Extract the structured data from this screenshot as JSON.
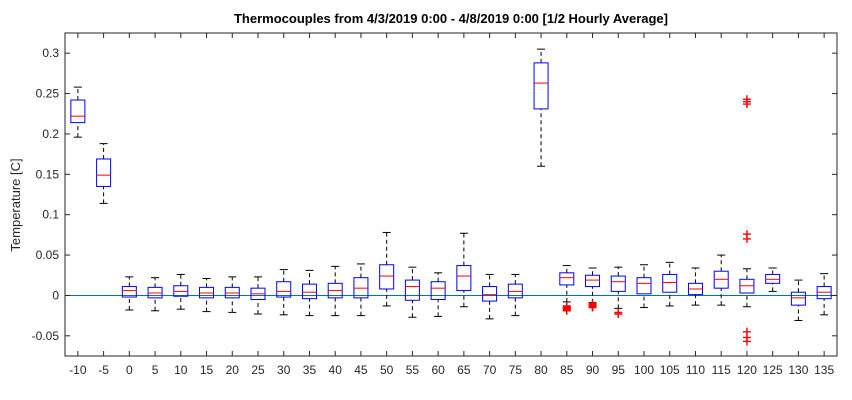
{
  "chart_data": {
    "type": "boxplot",
    "title": "Thermocouples from 4/3/2019 0:00 - 4/8/2019 0:00 [1/2 Hourly Average]",
    "xlabel": "",
    "ylabel": "Temperature [C]",
    "ylim": [
      -0.075,
      0.325
    ],
    "yticks": [
      -0.05,
      0,
      0.05,
      0.1,
      0.15,
      0.2,
      0.25,
      0.3
    ],
    "ytick_labels": [
      "-0.05",
      "0",
      "0.05",
      "0.1",
      "0.15",
      "0.2",
      "0.25",
      "0.3"
    ],
    "categories": [
      "-10",
      "-5",
      "0",
      "5",
      "10",
      "15",
      "20",
      "25",
      "30",
      "35",
      "40",
      "45",
      "50",
      "55",
      "60",
      "65",
      "70",
      "75",
      "80",
      "85",
      "90",
      "95",
      "100",
      "105",
      "110",
      "115",
      "120",
      "125",
      "130",
      "135"
    ],
    "grid": false,
    "reference_line": 0,
    "colors": {
      "box": "#0000ff",
      "median": "#ff0000",
      "whisker": "#000000",
      "outlier": "#ff0000",
      "reference_line": "#0072bd"
    },
    "boxes": [
      {
        "whisker_low": 0.196,
        "q1": 0.214,
        "median": 0.222,
        "q3": 0.242,
        "whisker_high": 0.258,
        "outliers": []
      },
      {
        "whisker_low": 0.114,
        "q1": 0.135,
        "median": 0.149,
        "q3": 0.169,
        "whisker_high": 0.188,
        "outliers": []
      },
      {
        "whisker_low": -0.018,
        "q1": -0.002,
        "median": 0.006,
        "q3": 0.011,
        "whisker_high": 0.023,
        "outliers": []
      },
      {
        "whisker_low": -0.019,
        "q1": -0.003,
        "median": 0.003,
        "q3": 0.01,
        "whisker_high": 0.022,
        "outliers": []
      },
      {
        "whisker_low": -0.017,
        "q1": -0.001,
        "median": 0.005,
        "q3": 0.012,
        "whisker_high": 0.026,
        "outliers": []
      },
      {
        "whisker_low": -0.02,
        "q1": -0.003,
        "median": 0.003,
        "q3": 0.01,
        "whisker_high": 0.021,
        "outliers": []
      },
      {
        "whisker_low": -0.021,
        "q1": -0.003,
        "median": 0.003,
        "q3": 0.01,
        "whisker_high": 0.023,
        "outliers": []
      },
      {
        "whisker_low": -0.023,
        "q1": -0.005,
        "median": 0.002,
        "q3": 0.009,
        "whisker_high": 0.023,
        "outliers": []
      },
      {
        "whisker_low": -0.024,
        "q1": -0.002,
        "median": 0.005,
        "q3": 0.017,
        "whisker_high": 0.032,
        "outliers": []
      },
      {
        "whisker_low": -0.025,
        "q1": -0.004,
        "median": 0.004,
        "q3": 0.014,
        "whisker_high": 0.031,
        "outliers": []
      },
      {
        "whisker_low": -0.025,
        "q1": -0.003,
        "median": 0.006,
        "q3": 0.015,
        "whisker_high": 0.036,
        "outliers": []
      },
      {
        "whisker_low": -0.025,
        "q1": -0.003,
        "median": 0.009,
        "q3": 0.022,
        "whisker_high": 0.039,
        "outliers": []
      },
      {
        "whisker_low": -0.013,
        "q1": 0.008,
        "median": 0.024,
        "q3": 0.038,
        "whisker_high": 0.078,
        "outliers": []
      },
      {
        "whisker_low": -0.027,
        "q1": -0.006,
        "median": 0.011,
        "q3": 0.019,
        "whisker_high": 0.035,
        "outliers": []
      },
      {
        "whisker_low": -0.026,
        "q1": -0.005,
        "median": 0.009,
        "q3": 0.017,
        "whisker_high": 0.028,
        "outliers": []
      },
      {
        "whisker_low": -0.014,
        "q1": 0.006,
        "median": 0.024,
        "q3": 0.037,
        "whisker_high": 0.077,
        "outliers": []
      },
      {
        "whisker_low": -0.029,
        "q1": -0.007,
        "median": 0.001,
        "q3": 0.011,
        "whisker_high": 0.026,
        "outliers": []
      },
      {
        "whisker_low": -0.025,
        "q1": -0.003,
        "median": 0.005,
        "q3": 0.014,
        "whisker_high": 0.026,
        "outliers": []
      },
      {
        "whisker_low": 0.16,
        "q1": 0.231,
        "median": 0.263,
        "q3": 0.288,
        "whisker_high": 0.305,
        "outliers": []
      },
      {
        "whisker_low": -0.008,
        "q1": 0.013,
        "median": 0.022,
        "q3": 0.028,
        "whisker_high": 0.037,
        "outliers": [
          -0.013,
          -0.014,
          -0.015,
          -0.016,
          -0.017,
          -0.018,
          -0.019
        ]
      },
      {
        "whisker_low": -0.009,
        "q1": 0.011,
        "median": 0.019,
        "q3": 0.025,
        "whisker_high": 0.034,
        "outliers": [
          -0.01,
          -0.011,
          -0.012,
          -0.013,
          -0.014,
          -0.015
        ]
      },
      {
        "whisker_low": -0.016,
        "q1": 0.005,
        "median": 0.017,
        "q3": 0.024,
        "whisker_high": 0.035,
        "outliers": [
          -0.021,
          -0.023
        ]
      },
      {
        "whisker_low": -0.015,
        "q1": 0.002,
        "median": 0.015,
        "q3": 0.022,
        "whisker_high": 0.038,
        "outliers": []
      },
      {
        "whisker_low": -0.013,
        "q1": 0.004,
        "median": 0.016,
        "q3": 0.026,
        "whisker_high": 0.041,
        "outliers": []
      },
      {
        "whisker_low": -0.012,
        "q1": 0.001,
        "median": 0.008,
        "q3": 0.015,
        "whisker_high": 0.034,
        "outliers": []
      },
      {
        "whisker_low": -0.012,
        "q1": 0.009,
        "median": 0.02,
        "q3": 0.03,
        "whisker_high": 0.05,
        "outliers": []
      },
      {
        "whisker_low": -0.014,
        "q1": 0.003,
        "median": 0.012,
        "q3": 0.02,
        "whisker_high": 0.033,
        "outliers": [
          0.237,
          0.24,
          0.243,
          0.07,
          0.076,
          -0.045,
          -0.052,
          -0.057
        ]
      },
      {
        "whisker_low": 0.005,
        "q1": 0.015,
        "median": 0.02,
        "q3": 0.026,
        "whisker_high": 0.034,
        "outliers": []
      },
      {
        "whisker_low": -0.031,
        "q1": -0.012,
        "median": -0.003,
        "q3": 0.004,
        "whisker_high": 0.019,
        "outliers": []
      },
      {
        "whisker_low": -0.024,
        "q1": -0.004,
        "median": 0.004,
        "q3": 0.011,
        "whisker_high": 0.027,
        "outliers": []
      }
    ]
  }
}
